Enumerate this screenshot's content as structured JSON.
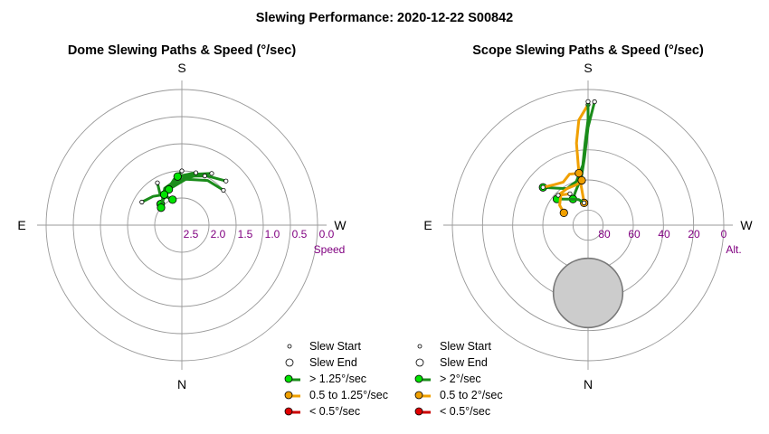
{
  "title": "Slewing Performance: 2020-12-22 S00842",
  "colors": {
    "fast": "#1a8c1a",
    "fast_dot": "#00e400",
    "medium": "#f0a000",
    "medium_dot": "#f0a000",
    "slow": "#cc0000",
    "slow_dot": "#e00000",
    "scale_text": "#800080",
    "grid": "#999999",
    "moon_fill": "#cccccc"
  },
  "chart_data": [
    {
      "type": "polar",
      "title": "Dome Slewing Paths & Speed (°/sec)",
      "directions": {
        "top": "S",
        "bottom": "N",
        "left": "E",
        "right": "W"
      },
      "radial_label": "Speed",
      "radial_ticks": [
        "2.5",
        "2.0",
        "1.5",
        "1.0",
        "0.5",
        "0.0"
      ],
      "rlim": [
        0.0,
        2.5
      ],
      "legend": [
        "Slew Start",
        "Slew End",
        "> 1.25°/sec",
        "0.5 to 1.25°/sec",
        "< 0.5°/sec"
      ],
      "paths": [
        {
          "speed": "fast",
          "points": [
            [
              150,
              1.6
            ],
            [
              145,
              1.8
            ],
            [
              160,
              2.0
            ]
          ]
        },
        {
          "speed": "fast",
          "points": [
            [
              180,
              1.5
            ],
            [
              170,
              1.65
            ],
            [
              150,
              1.85
            ],
            [
              135,
              1.95
            ]
          ]
        },
        {
          "speed": "fast",
          "points": [
            [
              210,
              1.4
            ],
            [
              190,
              1.55
            ],
            [
              165,
              1.75
            ],
            [
              135,
              1.95
            ]
          ]
        },
        {
          "speed": "fast",
          "points": [
            [
              225,
              1.35
            ],
            [
              200,
              1.5
            ],
            [
              170,
              1.7
            ],
            [
              150,
              1.85
            ]
          ]
        },
        {
          "speed": "fast",
          "points": [
            [
              205,
              1.5
            ],
            [
              180,
              1.6
            ],
            [
              155,
              1.75
            ],
            [
              130,
              2.0
            ]
          ]
        },
        {
          "speed": "fast",
          "points": [
            [
              230,
              1.5
            ],
            [
              210,
              1.55
            ],
            [
              185,
              1.65
            ],
            [
              160,
              1.8
            ]
          ]
        },
        {
          "speed": "fast",
          "points": [
            [
              120,
              1.65
            ],
            [
              135,
              1.75
            ],
            [
              150,
              1.85
            ]
          ]
        },
        {
          "speed": "fast",
          "points": [
            [
              195,
              1.5
            ],
            [
              175,
              1.6
            ]
          ]
        }
      ]
    },
    {
      "type": "polar",
      "title": "Scope Slewing Paths & Speed (°/sec)",
      "directions": {
        "top": "S",
        "bottom": "N",
        "left": "E",
        "right": "W"
      },
      "radial_label": "Alt.",
      "radial_ticks": [
        "80",
        "60",
        "40",
        "20",
        "0"
      ],
      "rlim": [
        90,
        0
      ],
      "legend": [
        "Slew Start",
        "Slew End",
        "> 2°/sec",
        "0.5 to 2°/sec",
        "< 0.5°/sec"
      ],
      "moon": {
        "az": 0,
        "alt": 45,
        "radius_deg": 23
      },
      "paths": [
        {
          "speed": "medium",
          "points": [
            [
              180,
              10
            ],
            [
              175,
              20
            ],
            [
              172,
              35
            ],
            [
              170,
              55
            ],
            [
              170,
              75
            ]
          ]
        },
        {
          "speed": "fast",
          "points": [
            [
              180,
              8
            ],
            [
              180,
              20
            ],
            [
              178,
              35
            ],
            [
              175,
              50
            ],
            [
              165,
              60
            ],
            [
              150,
              62
            ],
            [
              140,
              58
            ],
            [
              130,
              51
            ]
          ]
        },
        {
          "speed": "fast",
          "points": [
            [
              183,
              8
            ],
            [
              180,
              25
            ],
            [
              177,
              45
            ],
            [
              172,
              58
            ],
            [
              160,
              66
            ],
            [
              150,
              70
            ]
          ]
        },
        {
          "speed": "medium",
          "points": [
            [
              130,
              51
            ],
            [
              140,
              55
            ],
            [
              150,
              57
            ],
            [
              160,
              54
            ],
            [
              170,
              55
            ]
          ]
        },
        {
          "speed": "fast",
          "points": [
            [
              170,
              75
            ],
            [
              160,
              72
            ],
            [
              145,
              69
            ],
            [
              130,
              63
            ]
          ]
        },
        {
          "speed": "medium",
          "points": [
            [
              150,
              66
            ],
            [
              138,
              63
            ],
            [
              125,
              67
            ],
            [
              117,
              72
            ]
          ]
        },
        {
          "speed": "medium",
          "points": [
            [
              135,
              62
            ],
            [
              150,
              62
            ],
            [
              165,
              62
            ],
            [
              172,
              60
            ]
          ]
        }
      ]
    }
  ]
}
